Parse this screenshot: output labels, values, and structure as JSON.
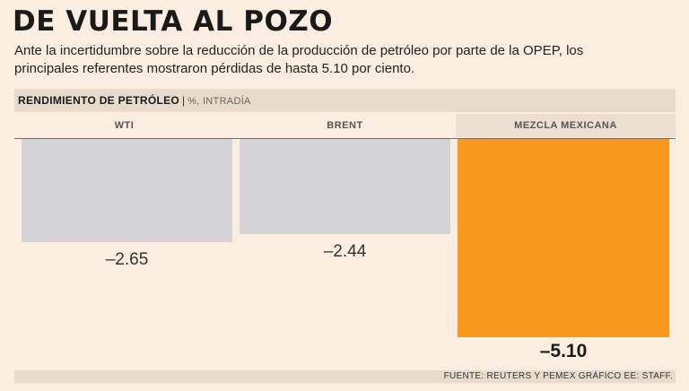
{
  "title": "DE VUELTA AL POZO",
  "subtitle": "Ante la incertidumbre sobre la reducción de la producción de petróleo por parte de la OPEP, los principales referentes mostraron pérdidas de hasta 5.10 por ciento.",
  "header": {
    "label": "RENDIMIENTO DE PETRÓLEO",
    "separator": "|",
    "unit": "%, INTRADÍA"
  },
  "source": "FUENTE: REUTERS Y PEMEX GRÁFICO EE: STAFF.",
  "colors": {
    "gray_bar": "#d4d4d6",
    "highlight_bar": "#f6991c",
    "background": "#fbeee0"
  },
  "chart_data": {
    "type": "bar",
    "categories": [
      "WTI",
      "BRENT",
      "MEZCLA MEXICANA"
    ],
    "values": [
      -2.65,
      -2.44,
      -5.1
    ],
    "value_labels": [
      "–2.65",
      "–2.44",
      "–5.10"
    ],
    "highlight_index": 2,
    "title": "",
    "xlabel": "",
    "ylabel": "",
    "ylim": [
      -5.1,
      0
    ],
    "grid": false,
    "legend": "none"
  }
}
